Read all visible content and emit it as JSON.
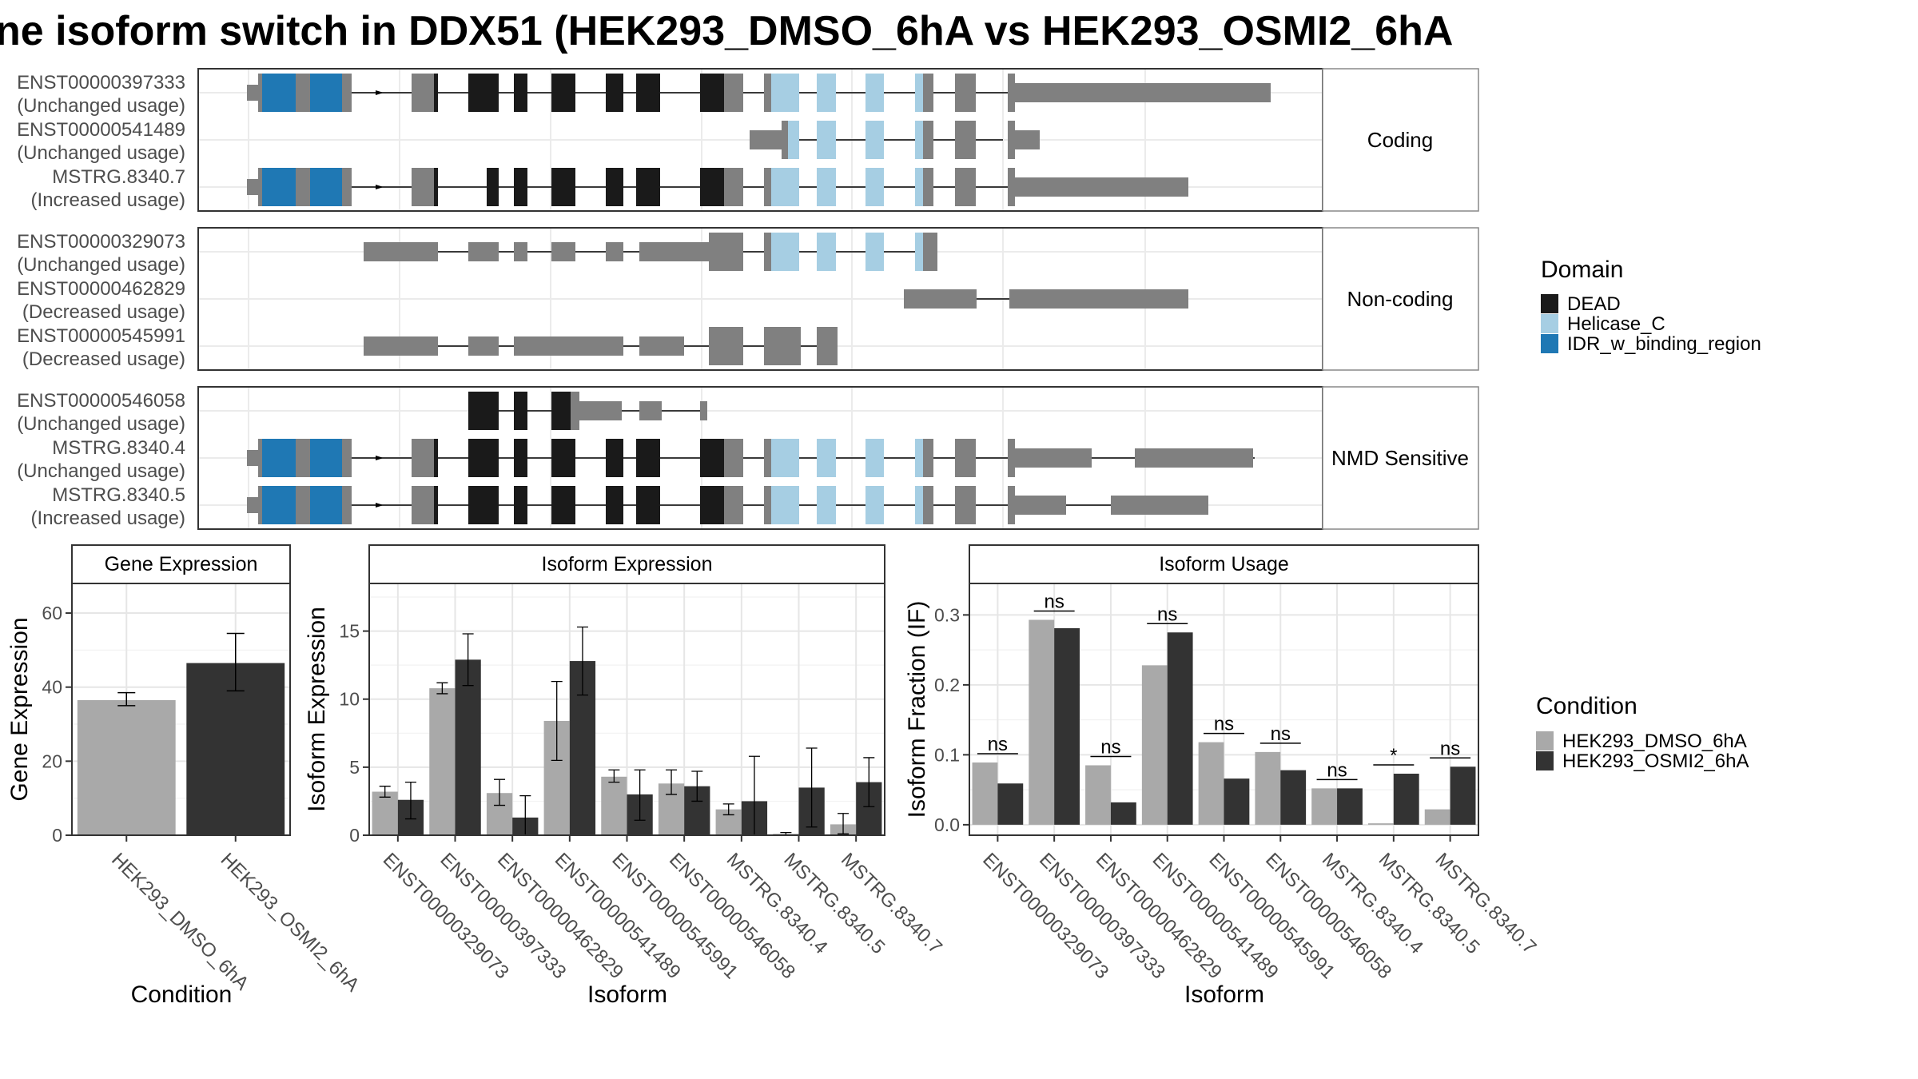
{
  "title": "ne isoform switch in DDX51 (HEK293_DMSO_6hA vs HEK293_OSMI2_6hA",
  "colors": {
    "DEAD": "#1a1a1a",
    "Helicase_C": "#a6cee3",
    "IDR_w_binding_region": "#1f78b4",
    "exon": "#808080",
    "dmso": "#a9a9a9",
    "osmi": "#333333"
  },
  "domain_legend": {
    "title": "Domain",
    "items": [
      {
        "label": "DEAD",
        "color": "#1a1a1a"
      },
      {
        "label": "Helicase_C",
        "color": "#a6cee3"
      },
      {
        "label": "IDR_w_binding_region",
        "color": "#1f78b4"
      }
    ]
  },
  "condition_legend": {
    "title": "Condition",
    "items": [
      {
        "label": "HEK293_DMSO_6hA",
        "color": "#a9a9a9"
      },
      {
        "label": "HEK293_OSMI2_6hA",
        "color": "#333333"
      }
    ]
  },
  "structure_panels": [
    {
      "strip": "Coding",
      "isoforms": [
        {
          "name": "ENST00000397333",
          "usage": "(Unchanged usage)"
        },
        {
          "name": "ENST00000541489",
          "usage": "(Unchanged usage)"
        },
        {
          "name": "MSTRG.8340.7",
          "usage": "(Increased usage)"
        }
      ]
    },
    {
      "strip": "Non-coding",
      "isoforms": [
        {
          "name": "ENST00000329073",
          "usage": "(Unchanged usage)"
        },
        {
          "name": "ENST00000462829",
          "usage": "(Decreased usage)"
        },
        {
          "name": "ENST00000545991",
          "usage": "(Decreased usage)"
        }
      ]
    },
    {
      "strip": "NMD Sensitive",
      "isoforms": [
        {
          "name": "ENST00000546058",
          "usage": "(Unchanged usage)"
        },
        {
          "name": "MSTRG.8340.4",
          "usage": "(Unchanged usage)"
        },
        {
          "name": "MSTRG.8340.5",
          "usage": "(Increased usage)"
        }
      ]
    }
  ],
  "chart_data": [
    {
      "type": "bar",
      "title": "Gene Expression",
      "xlabel": "Condition",
      "ylabel": "Gene Expression",
      "ylim": [
        0,
        68
      ],
      "yticks": [
        0,
        20,
        40,
        60
      ],
      "categories": [
        "HEK293_DMSO_6hA",
        "HEK293_OSMI2_6hA"
      ],
      "values": [
        36.5,
        46.5
      ],
      "errors": [
        [
          35,
          38.5
        ],
        [
          39,
          54.5
        ]
      ]
    },
    {
      "type": "bar",
      "title": "Isoform Expression",
      "xlabel": "Isoform",
      "ylabel": "Isoform Expression",
      "ylim": [
        0,
        18.5
      ],
      "yticks": [
        0,
        5,
        10,
        15
      ],
      "categories": [
        "ENST00000329073",
        "ENST00000397333",
        "ENST00000462829",
        "ENST00000541489",
        "ENST00000545991",
        "ENST00000546058",
        "MSTRG.8340.4",
        "MSTRG.8340.5",
        "MSTRG.8340.7"
      ],
      "series": [
        {
          "name": "HEK293_DMSO_6hA",
          "values": [
            3.2,
            10.8,
            3.1,
            8.4,
            4.3,
            3.8,
            1.9,
            0.1,
            0.8
          ],
          "errors": [
            [
              2.8,
              3.6
            ],
            [
              10.4,
              11.2
            ],
            [
              2.2,
              4.1
            ],
            [
              5.5,
              11.3
            ],
            [
              3.9,
              4.8
            ],
            [
              3.0,
              4.8
            ],
            [
              1.5,
              2.3
            ],
            [
              0.0,
              0.2
            ],
            [
              0.1,
              1.6
            ]
          ]
        },
        {
          "name": "HEK293_OSMI2_6hA",
          "values": [
            2.6,
            12.9,
            1.3,
            12.8,
            3.0,
            3.6,
            2.5,
            3.5,
            3.9
          ],
          "errors": [
            [
              1.2,
              3.9
            ],
            [
              11.0,
              14.8
            ],
            [
              0.0,
              2.9
            ],
            [
              10.3,
              15.3
            ],
            [
              1.1,
              4.8
            ],
            [
              2.5,
              4.7
            ],
            [
              0.0,
              5.8
            ],
            [
              0.6,
              6.4
            ],
            [
              2.1,
              5.7
            ]
          ]
        }
      ]
    },
    {
      "type": "bar",
      "title": "Isoform Usage",
      "xlabel": "Isoform",
      "ylabel": "Isoform Fraction (IF)",
      "ylim": [
        -0.015,
        0.345
      ],
      "yticks": [
        0.0,
        0.1,
        0.2,
        0.3
      ],
      "ytick_labels": [
        "0.0",
        "0.1",
        "0.2",
        "0.3"
      ],
      "categories": [
        "ENST00000329073",
        "ENST00000397333",
        "ENST00000462829",
        "ENST00000541489",
        "ENST00000545991",
        "ENST00000546058",
        "MSTRG.8340.4",
        "MSTRG.8340.5",
        "MSTRG.8340.7"
      ],
      "series": [
        {
          "name": "HEK293_DMSO_6hA",
          "values": [
            0.089,
            0.293,
            0.085,
            0.228,
            0.118,
            0.104,
            0.052,
            0.002,
            0.022
          ]
        },
        {
          "name": "HEK293_OSMI2_6hA",
          "values": [
            0.059,
            0.281,
            0.032,
            0.275,
            0.066,
            0.078,
            0.052,
            0.073,
            0.083
          ]
        }
      ],
      "significance": [
        "ns",
        "ns",
        "ns",
        "ns",
        "ns",
        "ns",
        "ns",
        "*",
        "ns"
      ]
    }
  ]
}
